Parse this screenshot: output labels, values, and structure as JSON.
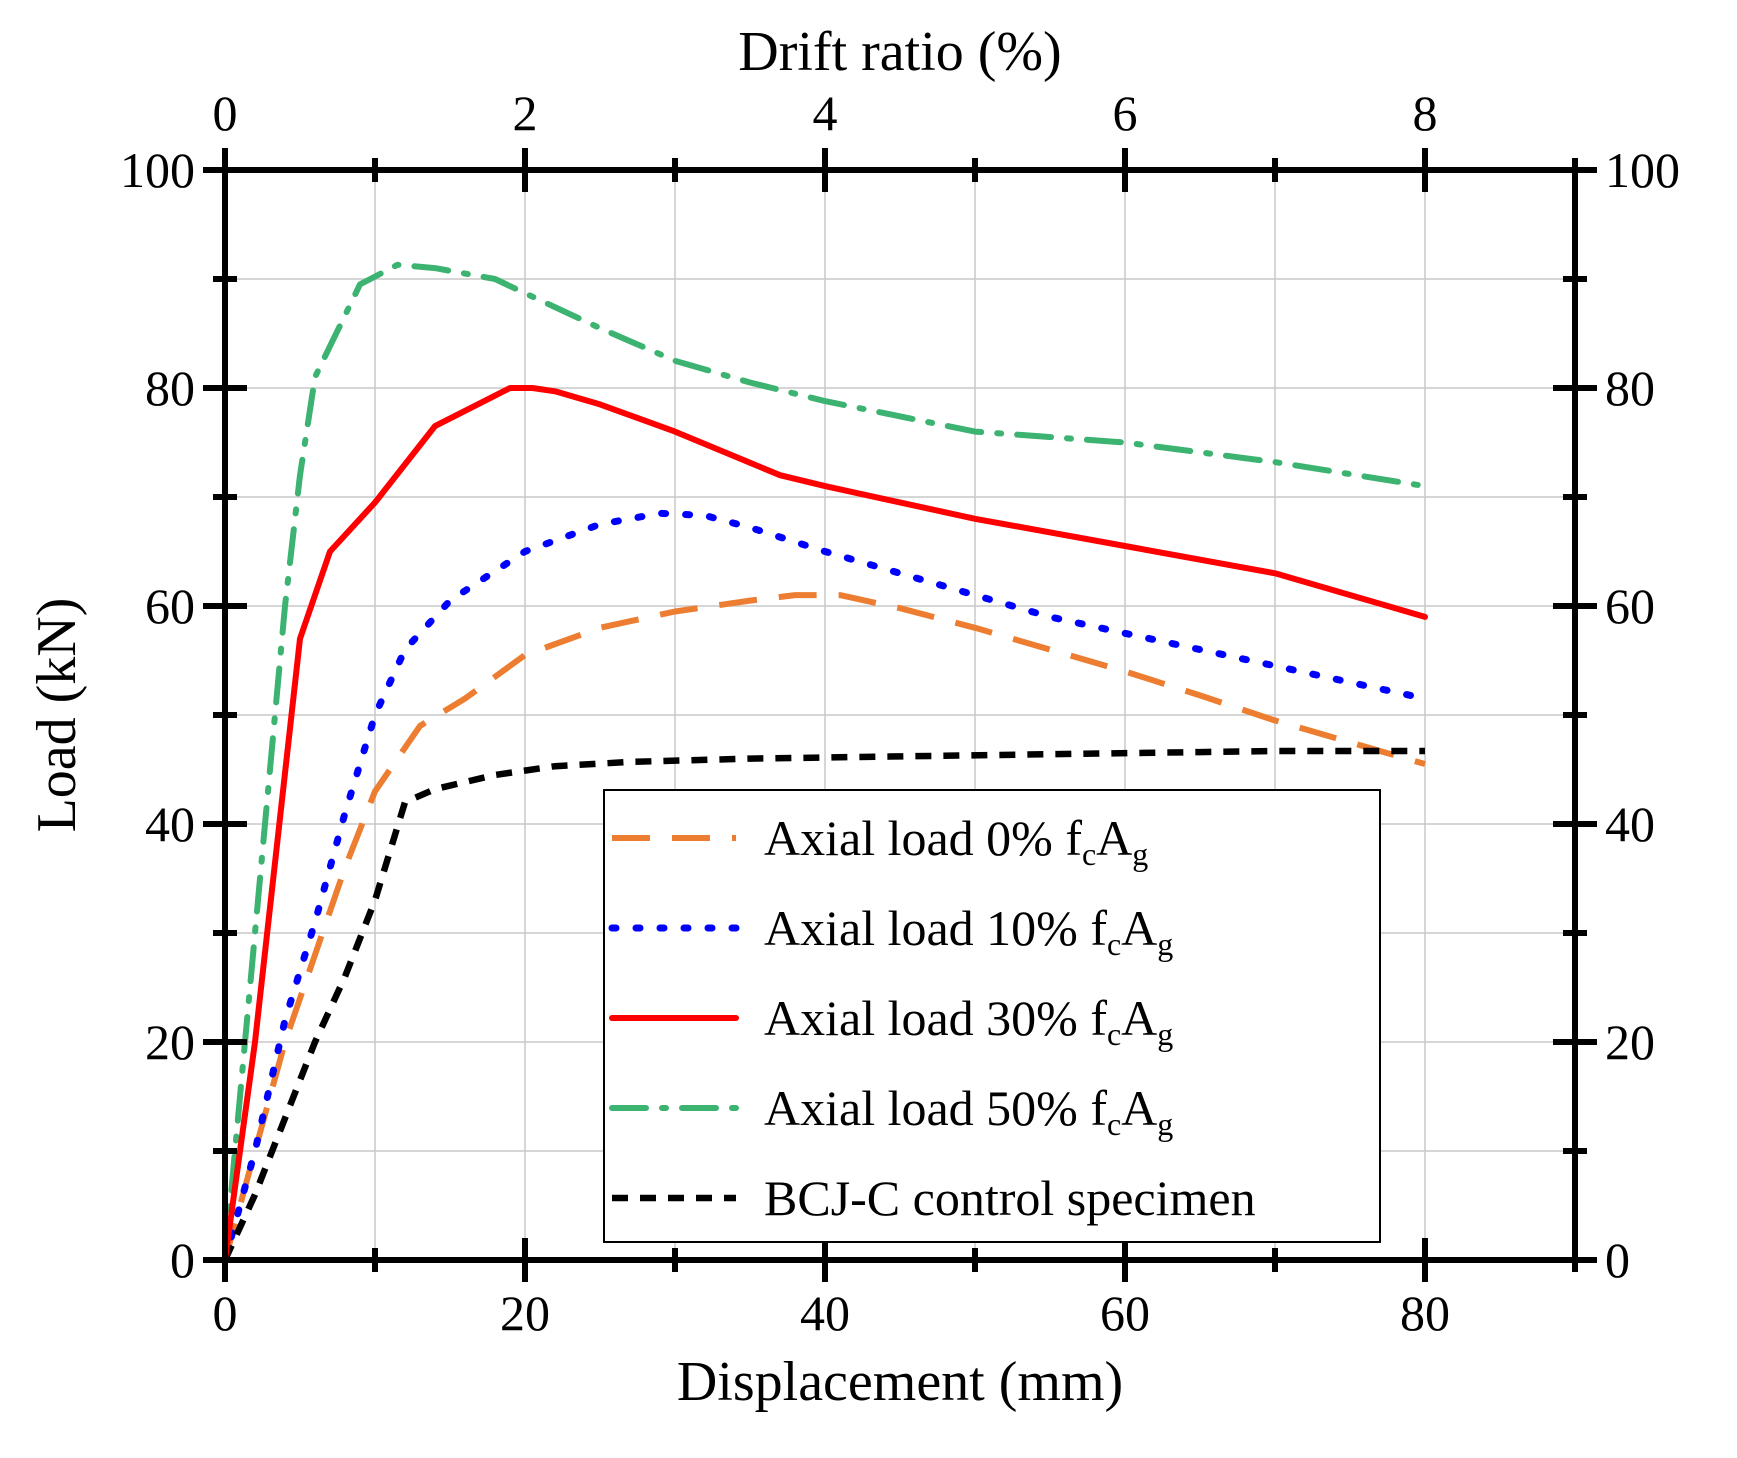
{
  "chart_data": {
    "type": "line",
    "xlabel": "Displacement (mm)",
    "ylabel": "Load (kN)",
    "x2label": "Drift ratio (%)",
    "xlim": [
      0,
      90
    ],
    "ylim": [
      0,
      100
    ],
    "x_ticks": [
      "0",
      "20",
      "40",
      "60",
      "80"
    ],
    "x_tick_values": [
      0,
      20,
      40,
      60,
      80
    ],
    "y_ticks": [
      "0",
      "20",
      "40",
      "60",
      "80",
      "100"
    ],
    "y_tick_values": [
      0,
      20,
      40,
      60,
      80,
      100
    ],
    "x2_ticks": [
      "0",
      "2",
      "4",
      "6",
      "8"
    ],
    "x2_tick_values": [
      0,
      20,
      40,
      60,
      80
    ],
    "y2_ticks": [
      "0",
      "20",
      "40",
      "60",
      "80",
      "100"
    ],
    "grid": true,
    "legend_position": "bottom-right",
    "series": [
      {
        "name": "Axial load 0% f_cA_g",
        "legend": {
          "prefix": "Axial load 0% f",
          "sub1": "c",
          "mid": "A",
          "sub2": "g"
        },
        "color": "#ED7D31",
        "style": "dashed",
        "x": [
          0,
          2,
          4,
          6,
          8,
          10,
          13,
          16,
          20,
          25,
          30,
          35,
          38,
          41,
          45,
          50,
          55,
          60,
          65,
          70,
          75,
          80
        ],
        "y": [
          0,
          10,
          20,
          28,
          36,
          43,
          49,
          51.5,
          55.5,
          58,
          59.5,
          60.5,
          61,
          61,
          59.8,
          58,
          56,
          54,
          51.8,
          49.5,
          47.5,
          45.5
        ]
      },
      {
        "name": "Axial load 10% f_cA_g",
        "legend": {
          "prefix": "Axial load 10% f",
          "sub1": "c",
          "mid": "A",
          "sub2": "g"
        },
        "color": "#0000FF",
        "style": "dotted",
        "x": [
          0,
          2,
          4,
          6,
          8,
          10,
          12,
          15,
          20,
          25,
          29,
          32,
          35,
          40,
          45,
          50,
          55,
          60,
          65,
          70,
          75,
          80
        ],
        "y": [
          0,
          10,
          22,
          31,
          41,
          50,
          56,
          60.5,
          65,
          67.5,
          68.5,
          68.3,
          67.2,
          65,
          63,
          61,
          59,
          57.5,
          56,
          54.5,
          53,
          51.5
        ]
      },
      {
        "name": "Axial load 30% f_cA_g",
        "legend": {
          "prefix": "Axial load 30% f",
          "sub1": "c",
          "mid": "A",
          "sub2": "g"
        },
        "color": "#FF0000",
        "style": "solid",
        "x": [
          0,
          2,
          5,
          7,
          10,
          14,
          19,
          20.5,
          22,
          25,
          30,
          37,
          40,
          50,
          60,
          70,
          80
        ],
        "y": [
          0,
          20,
          57,
          65,
          69.5,
          76.5,
          80,
          80,
          79.7,
          78.5,
          76,
          72,
          71,
          68,
          65.5,
          63,
          59
        ]
      },
      {
        "name": "Axial load 50% f_cA_g",
        "legend": {
          "prefix": "Axial load 50% f",
          "sub1": "c",
          "mid": "A",
          "sub2": "g"
        },
        "color": "#3CB371",
        "style": "dashdot",
        "x": [
          0,
          1,
          2,
          3,
          4,
          5,
          6,
          9,
          11.5,
          14,
          18,
          20,
          25,
          30,
          35,
          40,
          50,
          60,
          70,
          80
        ],
        "y": [
          0,
          15,
          30,
          45,
          60,
          72,
          81,
          89.5,
          91.3,
          91,
          90,
          88.7,
          85.5,
          82.5,
          80.5,
          78.8,
          76,
          75,
          73.2,
          71
        ]
      },
      {
        "name": "BCJ-C control specimen",
        "legend": {
          "prefix": "BCJ-C control specimen",
          "sub1": "",
          "mid": "",
          "sub2": ""
        },
        "color": "#000000",
        "style": "shortdash",
        "x": [
          0,
          2,
          4,
          6,
          8,
          10,
          12,
          14,
          18,
          22,
          27,
          35,
          45,
          55,
          65,
          70,
          80
        ],
        "y": [
          0,
          6,
          13,
          20,
          26,
          33,
          42,
          43.2,
          44.5,
          45.3,
          45.7,
          46,
          46.2,
          46.4,
          46.6,
          46.7,
          46.7
        ]
      }
    ]
  }
}
